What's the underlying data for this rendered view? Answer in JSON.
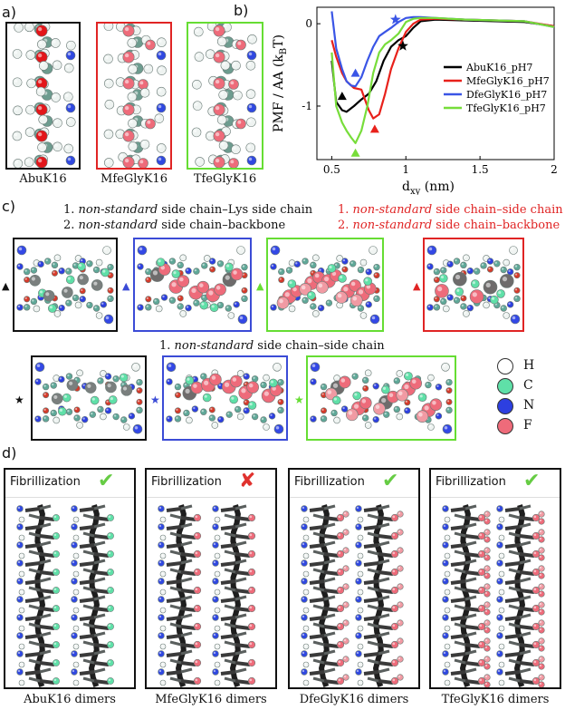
{
  "panel_labels": {
    "a": "a)",
    "b": "b)",
    "c": "c)",
    "d": "d)"
  },
  "panel_a": {
    "items": [
      {
        "caption": "AbuK16",
        "color": "#111111"
      },
      {
        "caption": "MfeGlyK16",
        "color": "#e02424"
      },
      {
        "caption": "TfeGlyK16",
        "color": "#66dd33"
      }
    ]
  },
  "panel_c": {
    "black_header": [
      {
        "num": "1.",
        "em": "non-standard",
        "rest": "side chain–Lys side chain"
      },
      {
        "num": "2.",
        "em": "non-standard",
        "rest": "side chain–backbone"
      }
    ],
    "red_header": [
      {
        "num": "1.",
        "em": "non-standard",
        "rest": "side chain–side chain"
      },
      {
        "num": "2.",
        "em": "non-standard",
        "rest": "side chain–backbone"
      }
    ],
    "row2_header": {
      "num": "1.",
      "em": "non-standard",
      "rest": "side chain–side chain"
    },
    "legend": [
      {
        "label": "H",
        "color": "#ffffff"
      },
      {
        "label": "C",
        "color": "#5fe0a8"
      },
      {
        "label": "N",
        "color": "#2d3fe0"
      },
      {
        "label": "F",
        "color": "#ee6b7a"
      }
    ],
    "row1_frames": [
      "#111111",
      "#3b4bd6",
      "#66dd33",
      "#e02424"
    ],
    "row2_frames": [
      "#111111",
      "#3b4bd6",
      "#66dd33"
    ],
    "marker_triangle": "▲",
    "marker_star": "★"
  },
  "panel_d": {
    "fib_label": "Fibrillization",
    "items": [
      {
        "caption": "AbuK16 dimers",
        "ok": true,
        "mark": "✔"
      },
      {
        "caption": "MfeGlyK16 dimers",
        "ok": false,
        "mark": "✘"
      },
      {
        "caption": "DfeGlyK16 dimers",
        "ok": true,
        "mark": "✔"
      },
      {
        "caption": "TfeGlyK16 dimers",
        "ok": true,
        "mark": "✔"
      }
    ]
  },
  "chart_data": {
    "type": "line",
    "xlabel": "d",
    "xlabel_sub": "xy",
    "xlabel_unit": "(nm)",
    "ylabel": "PMF / AA (k",
    "ylabel_sub": "B",
    "ylabel_end": "T)",
    "xlim": [
      0.4,
      2.0
    ],
    "ylim": [
      -1.65,
      0.2
    ],
    "xticks": [
      0.5,
      1,
      1.5,
      2
    ],
    "xtick_labels": [
      "0.5",
      "1",
      "1.5",
      "2"
    ],
    "yticks": [
      0,
      -1
    ],
    "ytick_labels": [
      "0",
      "-1"
    ],
    "legend_position": "right",
    "series": [
      {
        "name": "AbuK16_pH7",
        "color": "#000000",
        "x": [
          0.5,
          0.53,
          0.57,
          0.6,
          0.65,
          0.7,
          0.75,
          0.8,
          0.85,
          0.9,
          0.95,
          1.0,
          1.05,
          1.1,
          1.2,
          1.4,
          1.6,
          1.8,
          2.0
        ],
        "y": [
          -0.45,
          -0.95,
          -1.05,
          -1.07,
          -1.0,
          -0.92,
          -0.85,
          -0.7,
          -0.45,
          -0.28,
          -0.2,
          -0.15,
          -0.05,
          0.03,
          0.05,
          0.04,
          0.03,
          0.02,
          -0.03
        ]
      },
      {
        "name": "MfeGlyK16_pH7",
        "color": "#e8211b",
        "x": [
          0.5,
          0.53,
          0.57,
          0.6,
          0.65,
          0.7,
          0.75,
          0.78,
          0.82,
          0.86,
          0.9,
          0.95,
          1.0,
          1.05,
          1.1,
          1.2,
          1.4,
          1.6,
          1.8,
          2.0
        ],
        "y": [
          -0.2,
          -0.4,
          -0.6,
          -0.7,
          -0.78,
          -0.8,
          -1.05,
          -1.15,
          -1.1,
          -0.85,
          -0.55,
          -0.3,
          -0.1,
          0.0,
          0.05,
          0.06,
          0.05,
          0.04,
          0.03,
          -0.03
        ]
      },
      {
        "name": "DfeGlyK16_pH7",
        "color": "#3a55e6",
        "x": [
          0.5,
          0.53,
          0.57,
          0.6,
          0.63,
          0.66,
          0.7,
          0.74,
          0.78,
          0.82,
          0.86,
          0.9,
          0.95,
          1.0,
          1.05,
          1.1,
          1.2,
          1.4,
          1.6,
          1.8,
          2.0
        ],
        "y": [
          0.15,
          -0.3,
          -0.55,
          -0.7,
          -0.75,
          -0.76,
          -0.65,
          -0.45,
          -0.28,
          -0.15,
          -0.1,
          -0.05,
          0.02,
          0.07,
          0.08,
          0.08,
          0.07,
          0.05,
          0.04,
          0.03,
          -0.04
        ]
      },
      {
        "name": "TfeGlyK16_pH7",
        "color": "#77dd3a",
        "x": [
          0.5,
          0.53,
          0.57,
          0.6,
          0.63,
          0.66,
          0.7,
          0.74,
          0.78,
          0.82,
          0.86,
          0.9,
          0.95,
          1.0,
          1.05,
          1.1,
          1.2,
          1.4,
          1.6,
          1.8,
          2.0
        ],
        "y": [
          -0.35,
          -1.0,
          -1.2,
          -1.3,
          -1.38,
          -1.45,
          -1.3,
          -1.0,
          -0.6,
          -0.35,
          -0.25,
          -0.2,
          -0.12,
          0.02,
          0.06,
          0.07,
          0.07,
          0.05,
          0.04,
          0.03,
          -0.04
        ]
      }
    ],
    "markers": [
      {
        "shape": "triangle",
        "color": "#000000",
        "x": 0.57,
        "y": -0.88
      },
      {
        "shape": "triangle",
        "color": "#3a55e6",
        "x": 0.66,
        "y": -0.6
      },
      {
        "shape": "triangle",
        "color": "#e8211b",
        "x": 0.79,
        "y": -1.28
      },
      {
        "shape": "triangle",
        "color": "#77dd3a",
        "x": 0.66,
        "y": -1.57
      },
      {
        "shape": "star",
        "color": "#000000",
        "x": 0.98,
        "y": -0.27
      },
      {
        "shape": "star",
        "color": "#3a55e6",
        "x": 0.93,
        "y": 0.05
      }
    ]
  }
}
